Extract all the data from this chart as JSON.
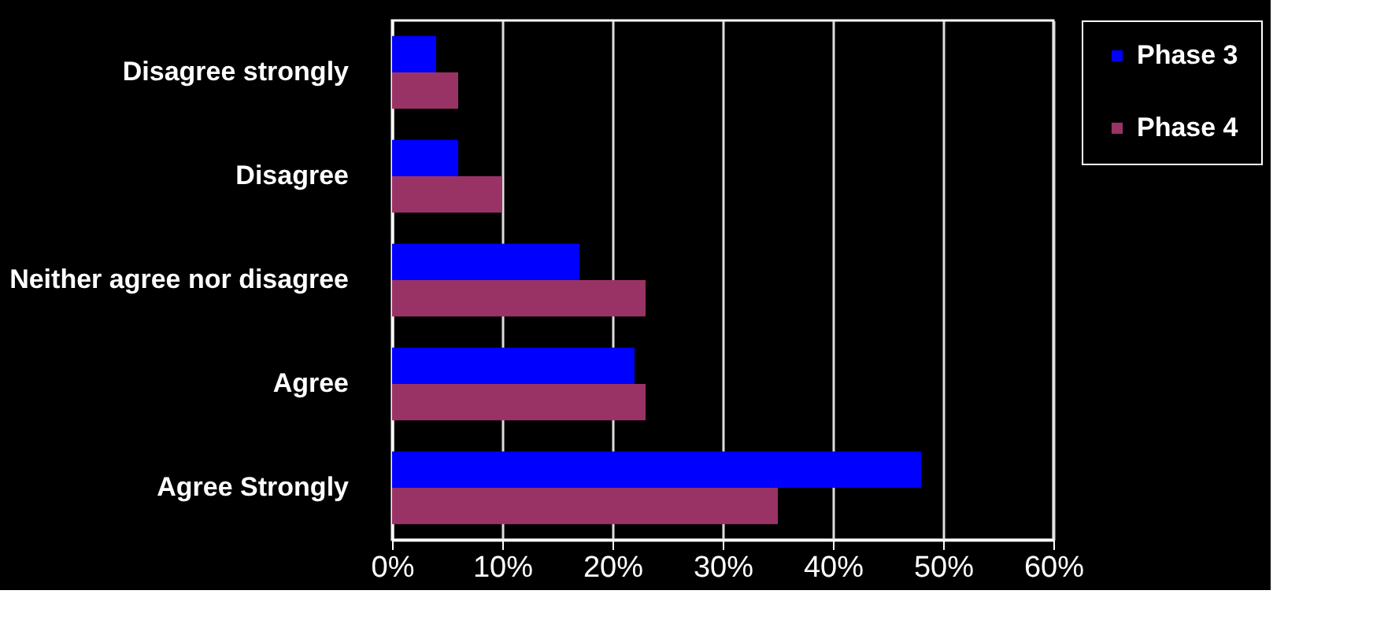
{
  "chart_data": {
    "type": "bar",
    "orientation": "horizontal",
    "categories": [
      "Disagree strongly",
      "Disagree",
      "Neither agree nor disagree",
      "Agree",
      "Agree Strongly"
    ],
    "series": [
      {
        "name": "Phase 3",
        "color": "#0000ff",
        "values": [
          4,
          6,
          17,
          22,
          48
        ]
      },
      {
        "name": "Phase 4",
        "color": "#993366",
        "values": [
          6,
          10,
          23,
          23,
          35
        ]
      }
    ],
    "xlim": [
      0,
      60
    ],
    "xticks": [
      {
        "value": 0,
        "label": "0%"
      },
      {
        "value": 10,
        "label": "10%"
      },
      {
        "value": 20,
        "label": "20%"
      },
      {
        "value": 30,
        "label": "30%"
      },
      {
        "value": 40,
        "label": "40%"
      },
      {
        "value": 50,
        "label": "50%"
      },
      {
        "value": 60,
        "label": "60%"
      }
    ],
    "grid": "x",
    "legend": "right"
  }
}
